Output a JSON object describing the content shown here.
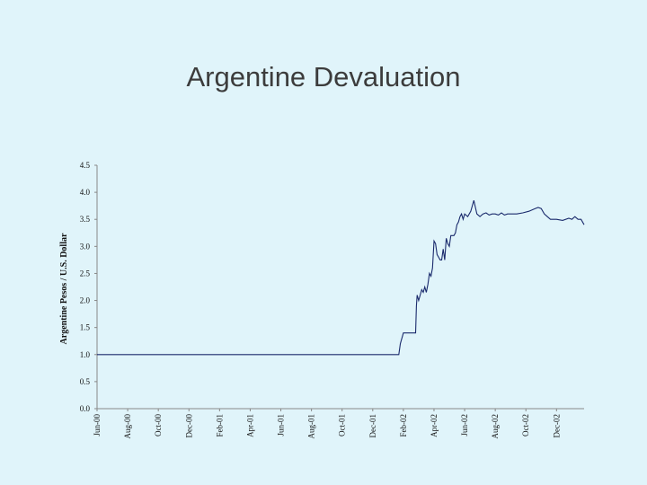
{
  "slide": {
    "title": "Argentine Devaluation"
  },
  "chart_data": {
    "type": "line",
    "title": "",
    "xlabel": "",
    "ylabel": "Argentine Pesos / U.S. Dollar",
    "ylim": [
      0,
      4.5
    ],
    "yticks": [
      "0.0",
      "0.5",
      "1.0",
      "1.5",
      "2.0",
      "2.5",
      "3.0",
      "3.5",
      "4.0",
      "4.5"
    ],
    "xticks": [
      "Jun-00",
      "Aug-00",
      "Oct-00",
      "Dec-00",
      "Feb-01",
      "Apr-01",
      "Jun-01",
      "Aug-01",
      "Oct-01",
      "Dec-01",
      "Feb-02",
      "Apr-02",
      "Jun-02",
      "Aug-02",
      "Oct-02",
      "Dec-02"
    ],
    "x_range": [
      0,
      31.8
    ],
    "grid": false,
    "line_color": "#1a2a6c",
    "series": [
      {
        "x": [
          0,
          19.7,
          19.8,
          20.0,
          20.1,
          20.7,
          20.8,
          20.85,
          20.9,
          21.0,
          21.1,
          21.2,
          21.3,
          21.4,
          21.5,
          21.6,
          21.7,
          21.8,
          21.9,
          22.0,
          22.1,
          22.2,
          22.3,
          22.4,
          22.5,
          22.6,
          22.7,
          22.8,
          22.9,
          23.0,
          23.1,
          23.2,
          23.3,
          23.4,
          23.5,
          23.6,
          23.7,
          23.8,
          23.9,
          24.0,
          24.2,
          24.4,
          24.6,
          24.8,
          25.0,
          25.2,
          25.4,
          25.6,
          25.8,
          26.0,
          26.2,
          26.4,
          26.6,
          26.8,
          27.0,
          27.4,
          27.8,
          28.2,
          28.6,
          28.8,
          29.0,
          29.2,
          29.4,
          29.6,
          29.8,
          30.0,
          30.4,
          30.8,
          31.0,
          31.2,
          31.4,
          31.6,
          31.8
        ],
        "y": [
          1.0,
          1.0,
          1.2,
          1.4,
          1.4,
          1.4,
          1.4,
          1.9,
          2.1,
          2.0,
          2.1,
          2.2,
          2.15,
          2.25,
          2.15,
          2.3,
          2.5,
          2.45,
          2.6,
          3.1,
          3.05,
          2.85,
          2.8,
          2.75,
          2.75,
          2.95,
          2.75,
          3.15,
          3.05,
          3.0,
          3.2,
          3.2,
          3.2,
          3.25,
          3.4,
          3.45,
          3.55,
          3.6,
          3.5,
          3.6,
          3.55,
          3.65,
          3.85,
          3.6,
          3.55,
          3.6,
          3.62,
          3.58,
          3.6,
          3.6,
          3.58,
          3.62,
          3.58,
          3.6,
          3.6,
          3.6,
          3.62,
          3.65,
          3.7,
          3.72,
          3.7,
          3.6,
          3.55,
          3.5,
          3.5,
          3.5,
          3.48,
          3.52,
          3.5,
          3.55,
          3.5,
          3.5,
          3.4
        ]
      }
    ]
  }
}
